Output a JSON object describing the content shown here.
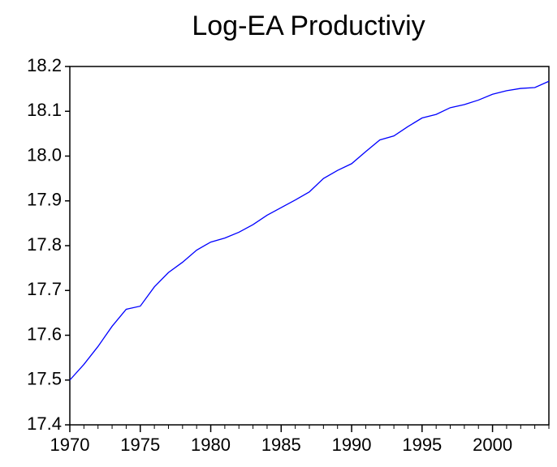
{
  "chart_data": {
    "type": "line",
    "title": "Log-EA Productiviy",
    "x": [
      1970,
      1971,
      1972,
      1973,
      1974,
      1975,
      1976,
      1977,
      1978,
      1979,
      1980,
      1981,
      1982,
      1983,
      1984,
      1985,
      1986,
      1987,
      1988,
      1989,
      1990,
      1991,
      1992,
      1993,
      1994,
      1995,
      1996,
      1997,
      1998,
      1999,
      2000,
      2001,
      2002,
      2003,
      2004
    ],
    "series": [
      {
        "color": "#0000ff",
        "values": [
          17.5,
          17.535,
          17.575,
          17.62,
          17.658,
          17.665,
          17.708,
          17.74,
          17.763,
          17.79,
          17.808,
          17.817,
          17.83,
          17.847,
          17.868,
          17.885,
          17.902,
          17.92,
          17.95,
          17.968,
          17.983,
          18.01,
          18.036,
          18.045,
          18.066,
          18.085,
          18.093,
          18.108,
          18.115,
          18.125,
          18.138,
          18.146,
          18.151,
          18.153,
          18.167
        ]
      }
    ],
    "xlim": [
      1970,
      2004
    ],
    "xticks": [
      1970,
      1975,
      1980,
      1985,
      1990,
      1995,
      2000
    ],
    "ylim": [
      17.4,
      18.2
    ],
    "yticks": [
      {
        "value": 17.4,
        "label": "17.4"
      },
      17.5,
      17.6,
      17.7,
      17.8,
      17.9,
      {
        "value": 18,
        "label": "18.0"
      },
      18.1,
      18.2
    ]
  }
}
